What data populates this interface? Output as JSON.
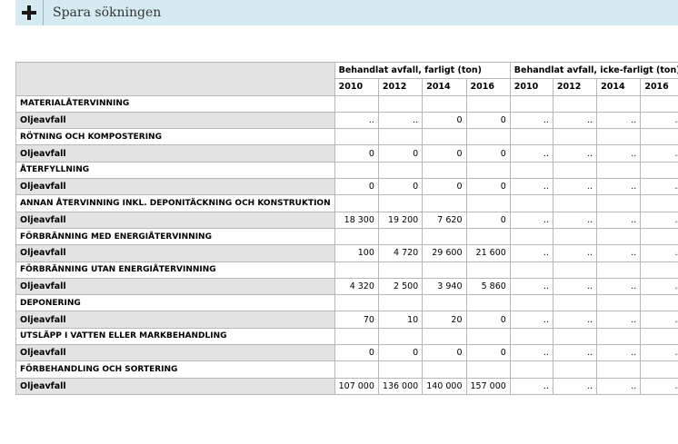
{
  "toolbar": {
    "plus_icon": "plus-icon",
    "save_label": "Spara sökningen"
  },
  "table": {
    "groups": [
      "Behandlat avfall, farligt (ton)",
      "Behandlat avfall, icke-farligt (ton)"
    ],
    "years": [
      "2010",
      "2012",
      "2014",
      "2016",
      "2010",
      "2012",
      "2014",
      "2016"
    ],
    "sections": [
      {
        "category": "MATERIALÅTERVINNING",
        "item": "Oljeavfall",
        "values": [
          "..",
          "..",
          "0",
          "0",
          "..",
          "..",
          "..",
          ".."
        ]
      },
      {
        "category": "RÖTNING OCH KOMPOSTERING",
        "item": "Oljeavfall",
        "values": [
          "0",
          "0",
          "0",
          "0",
          "..",
          "..",
          "..",
          ".."
        ]
      },
      {
        "category": "ÅTERFYLLNING",
        "item": "Oljeavfall",
        "values": [
          "0",
          "0",
          "0",
          "0",
          "..",
          "..",
          "..",
          ".."
        ]
      },
      {
        "category": "ANNAN ÅTERVINNING INKL. DEPONITÄCKNING OCH KONSTRUKTION",
        "item": "Oljeavfall",
        "values": [
          "18 300",
          "19 200",
          "7 620",
          "0",
          "..",
          "..",
          "..",
          ".."
        ]
      },
      {
        "category": "FÖRBRÄNNING MED ENERGIÅTERVINNING",
        "item": "Oljeavfall",
        "values": [
          "100",
          "4 720",
          "29 600",
          "21 600",
          "..",
          "..",
          "..",
          ".."
        ]
      },
      {
        "category": "FÖRBRÄNNING UTAN ENERGIÅTERVINNING",
        "item": "Oljeavfall",
        "values": [
          "4 320",
          "2 500",
          "3 940",
          "5 860",
          "..",
          "..",
          "..",
          ".."
        ]
      },
      {
        "category": "DEPONERING",
        "item": "Oljeavfall",
        "values": [
          "70",
          "10",
          "20",
          "0",
          "..",
          "..",
          "..",
          ".."
        ]
      },
      {
        "category": "UTSLÄPP I VATTEN ELLER MARKBEHANDLING",
        "item": "Oljeavfall",
        "values": [
          "0",
          "0",
          "0",
          "0",
          "..",
          "..",
          "..",
          ".."
        ]
      },
      {
        "category": "FÖRBEHANDLING OCH SORTERING",
        "item": "Oljeavfall",
        "values": [
          "107 000",
          "136 000",
          "140 000",
          "157 000",
          "..",
          "..",
          "..",
          ".."
        ]
      }
    ]
  }
}
